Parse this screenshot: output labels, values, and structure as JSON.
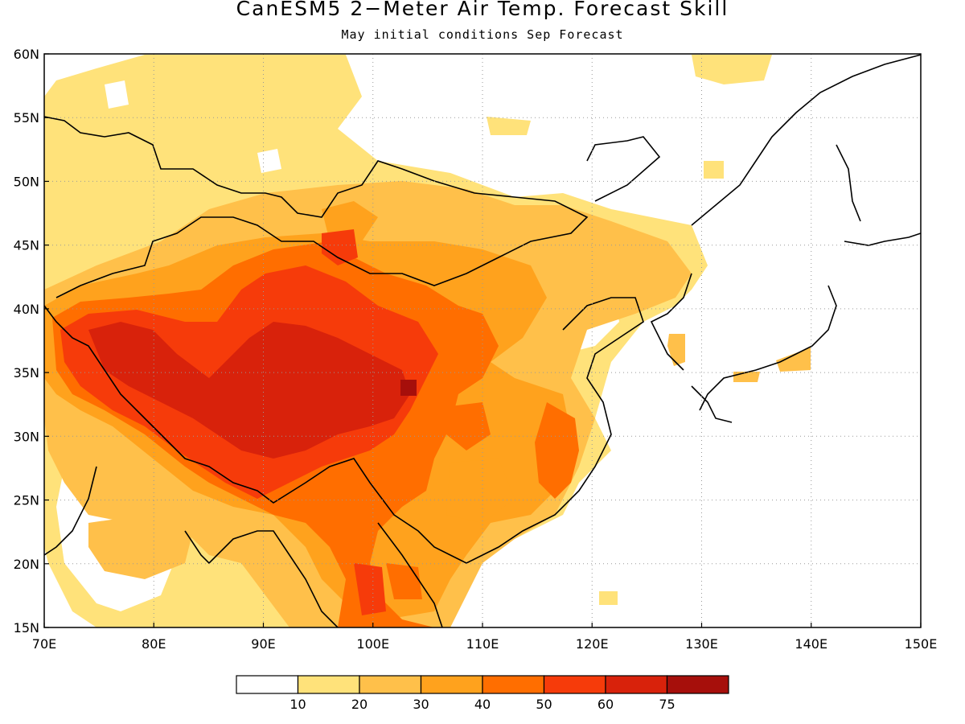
{
  "title": "CanESM5 2−Meter Air Temp. Forecast Skill",
  "subtitle": "May initial conditions  Sep Forecast",
  "map": {
    "lon_range": [
      70,
      150
    ],
    "lat_range": [
      15,
      60
    ],
    "lon_ticks": [
      "70E",
      "80E",
      "90E",
      "100E",
      "110E",
      "120E",
      "130E",
      "140E",
      "150E"
    ],
    "lat_ticks": [
      "15N",
      "20N",
      "25N",
      "30N",
      "35N",
      "40N",
      "45N",
      "50N",
      "55N",
      "60N"
    ],
    "grid": "dotted"
  },
  "colorbar": {
    "colors": [
      "#ffffff",
      "#ffe27a",
      "#ffc04a",
      "#ffa21d",
      "#ff6e00",
      "#f63b0a",
      "#d8220b",
      "#a60f0b"
    ],
    "labels": [
      "10",
      "20",
      "30",
      "40",
      "50",
      "60",
      "75"
    ]
  }
}
